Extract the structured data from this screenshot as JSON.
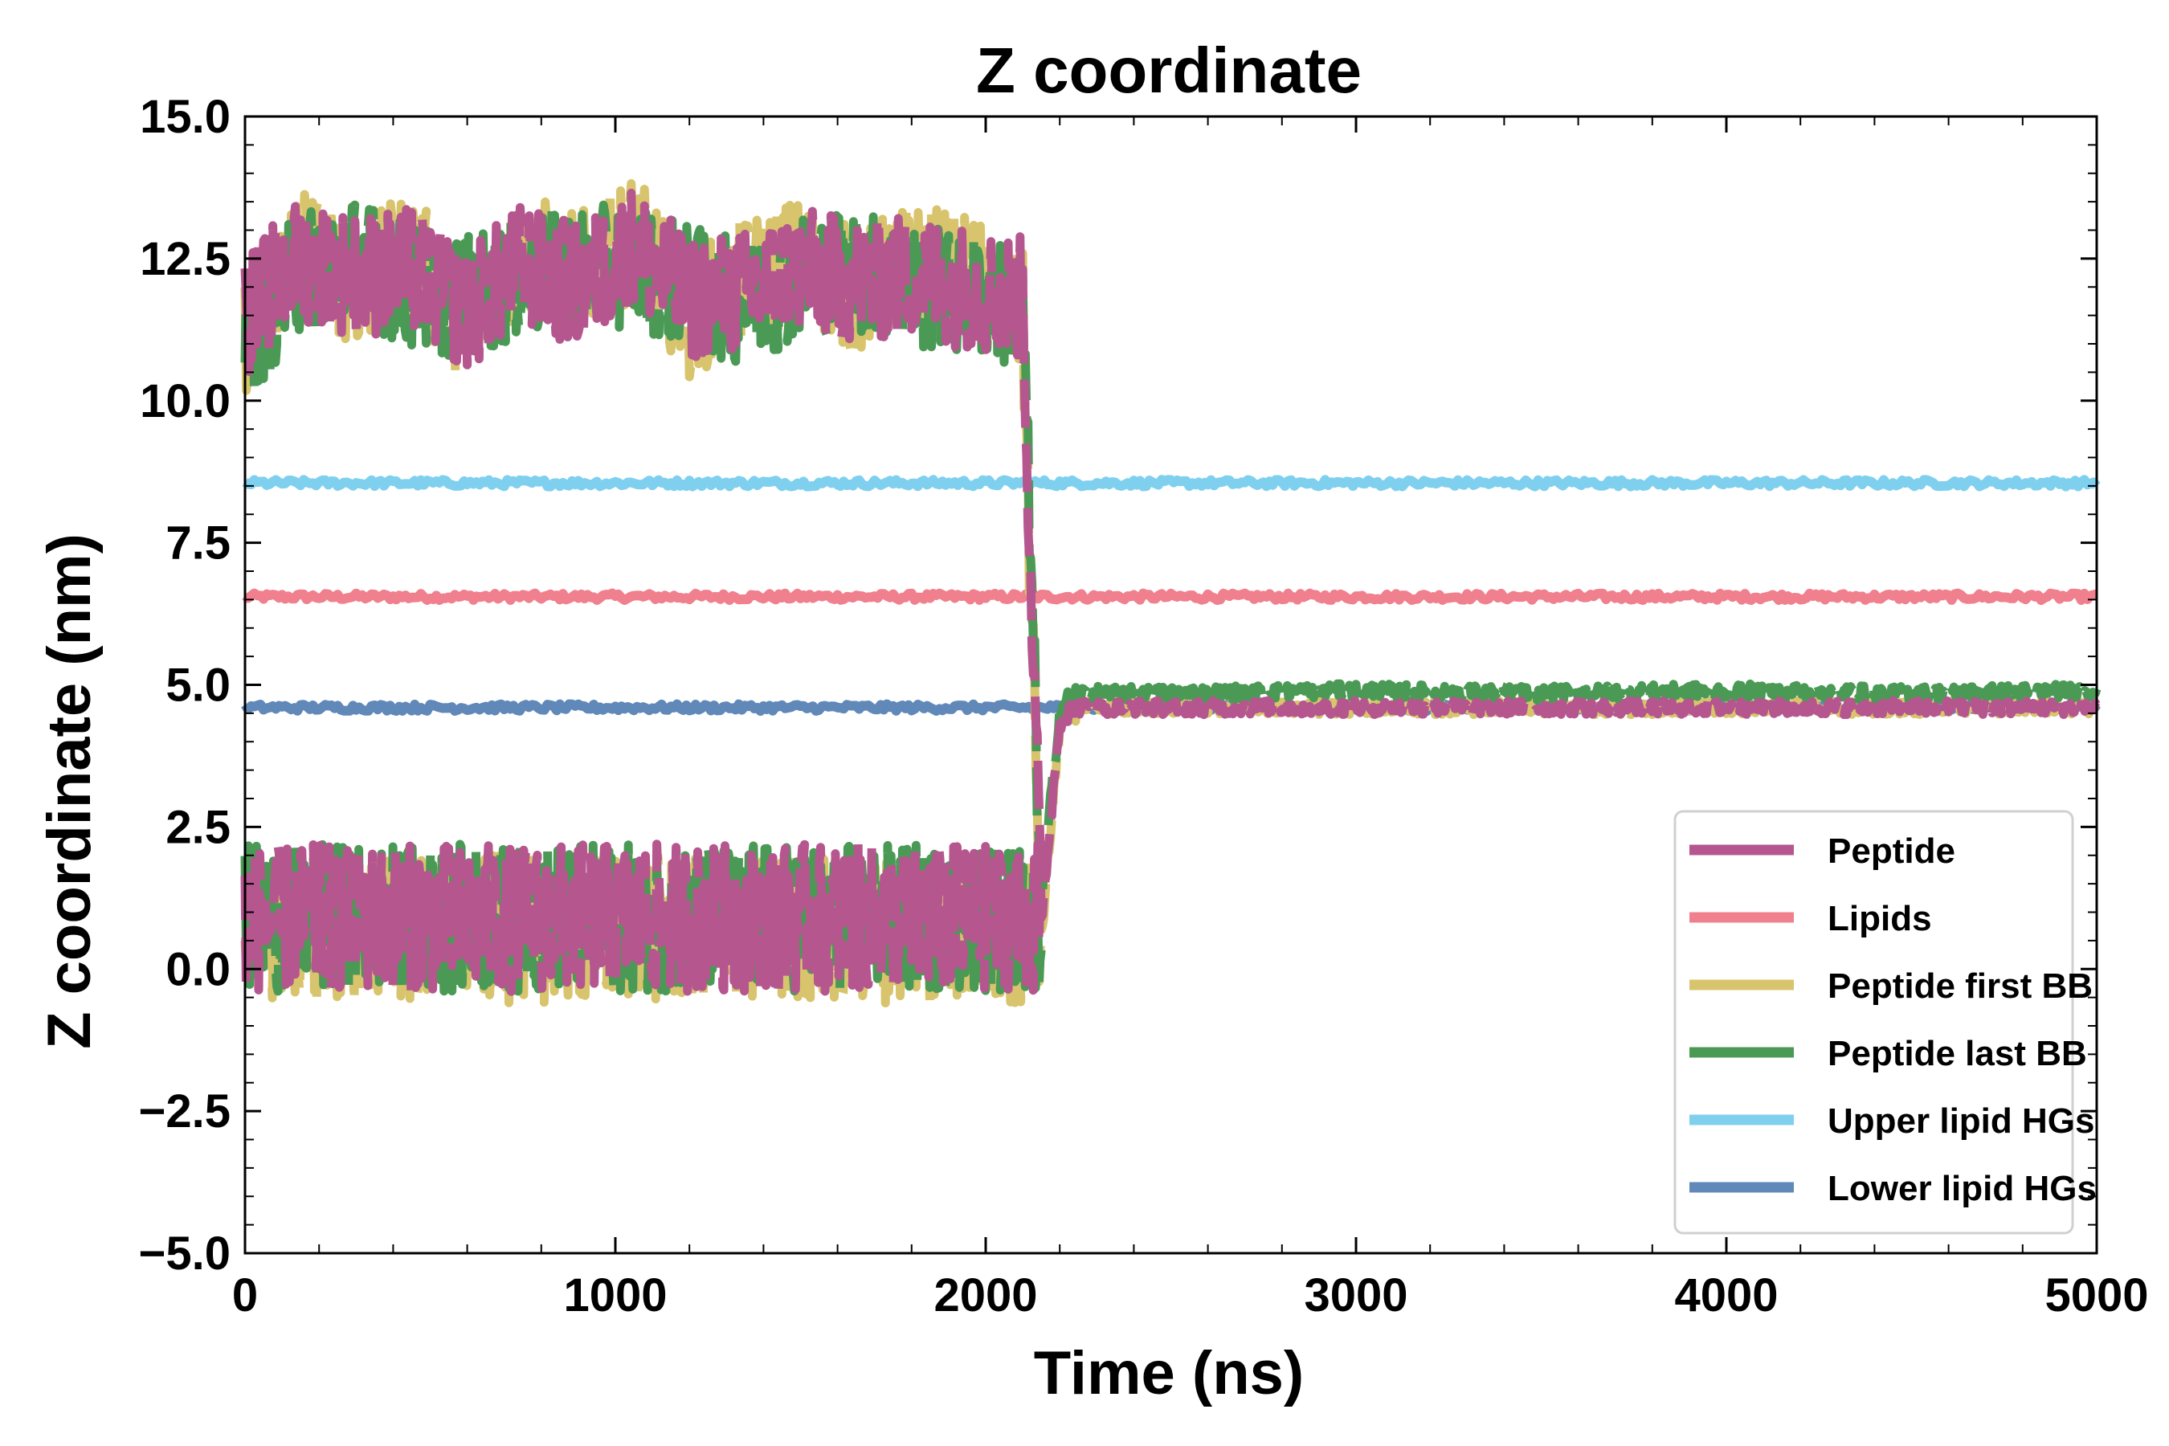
{
  "chart_data": {
    "type": "line",
    "title": "Z coordinate",
    "xlabel": "Time (ns)",
    "ylabel": "Z coordinate (nm)",
    "xlim": [
      0,
      5000
    ],
    "ylim": [
      -5.0,
      15.0
    ],
    "xticks": [
      0,
      1000,
      2000,
      3000,
      4000,
      5000
    ],
    "xtick_labels": [
      "0",
      "1000",
      "2000",
      "3000",
      "4000",
      "5000"
    ],
    "yticks": [
      -5.0,
      -2.5,
      0.0,
      2.5,
      5.0,
      7.5,
      10.0,
      12.5,
      15.0
    ],
    "ytick_labels": [
      "−5.0",
      "−2.5",
      "0.0",
      "2.5",
      "5.0",
      "7.5",
      "10.0",
      "12.5",
      "15.0"
    ],
    "grid": false,
    "legend_position": "lower-right",
    "series": [
      {
        "name": "Peptide",
        "color": "#b5568f",
        "style": "dashed",
        "order": 3,
        "x": [
          0,
          150,
          300,
          450,
          600,
          750,
          900,
          1050,
          1200,
          1350,
          1500,
          1650,
          1800,
          1950,
          2100,
          2150,
          2200,
          2250,
          2500,
          3000,
          3500,
          4000,
          4500,
          5000
        ],
        "y": [
          11.5,
          12.5,
          12.2,
          12.3,
          11.6,
          12.4,
          12.0,
          12.7,
          11.8,
          11.9,
          12.3,
          12.1,
          12.2,
          12.0,
          11.8,
          0.8,
          4.4,
          4.6,
          4.6,
          4.6,
          4.6,
          4.6,
          4.6,
          4.6
        ],
        "breaks": [
          [
            0,
            2150,
            11.3,
            13.2,
            10.5
          ],
          [
            0,
            2150,
            1.0,
            2.5,
            -0.3
          ]
        ]
      },
      {
        "name": "Lipids",
        "color": "#f0808e",
        "style": "solid",
        "order": 1,
        "x": [
          0,
          1000,
          2000,
          3000,
          4000,
          5000
        ],
        "y": [
          6.55,
          6.55,
          6.55,
          6.55,
          6.55,
          6.55
        ]
      },
      {
        "name": "Peptide first BB",
        "color": "#d8c46c",
        "style": "dashed",
        "order": 2,
        "x": [
          0,
          150,
          300,
          450,
          600,
          750,
          900,
          1050,
          1200,
          1350,
          1500,
          1650,
          1800,
          1950,
          2100,
          2150,
          2200,
          2250,
          2500,
          3000,
          3500,
          4000,
          4500,
          5000
        ],
        "y": [
          11.2,
          12.8,
          12.0,
          12.6,
          11.3,
          12.6,
          12.2,
          12.9,
          11.5,
          12.1,
          12.5,
          11.9,
          12.4,
          12.2,
          11.5,
          0.5,
          4.3,
          4.6,
          4.6,
          4.6,
          4.6,
          4.6,
          4.6,
          4.6
        ]
      },
      {
        "name": "Peptide last BB",
        "color": "#4a9a56",
        "style": "dashed",
        "order": 2,
        "x": [
          0,
          150,
          300,
          450,
          600,
          750,
          900,
          1050,
          1200,
          1350,
          1500,
          1650,
          1800,
          1950,
          2100,
          2150,
          2200,
          2250,
          2500,
          3000,
          3500,
          4000,
          4500,
          5000
        ],
        "y": [
          11.0,
          12.3,
          12.5,
          12.0,
          11.8,
          12.2,
          12.3,
          12.4,
          12.0,
          11.7,
          12.2,
          12.3,
          12.0,
          11.9,
          11.6,
          1.2,
          4.6,
          4.85,
          4.85,
          4.9,
          4.85,
          4.9,
          4.85,
          4.9
        ]
      },
      {
        "name": "Upper lipid HGs",
        "color": "#7fd0ee",
        "style": "solid",
        "order": 1,
        "x": [
          0,
          1000,
          2000,
          3000,
          4000,
          5000
        ],
        "y": [
          8.55,
          8.55,
          8.55,
          8.55,
          8.55,
          8.55
        ]
      },
      {
        "name": "Lower lipid HGs",
        "color": "#6088b8",
        "style": "solid",
        "order": 1,
        "x": [
          0,
          1000,
          2000,
          3000,
          4000,
          5000
        ],
        "y": [
          4.6,
          4.6,
          4.6,
          4.6,
          4.6,
          4.6
        ]
      }
    ]
  }
}
